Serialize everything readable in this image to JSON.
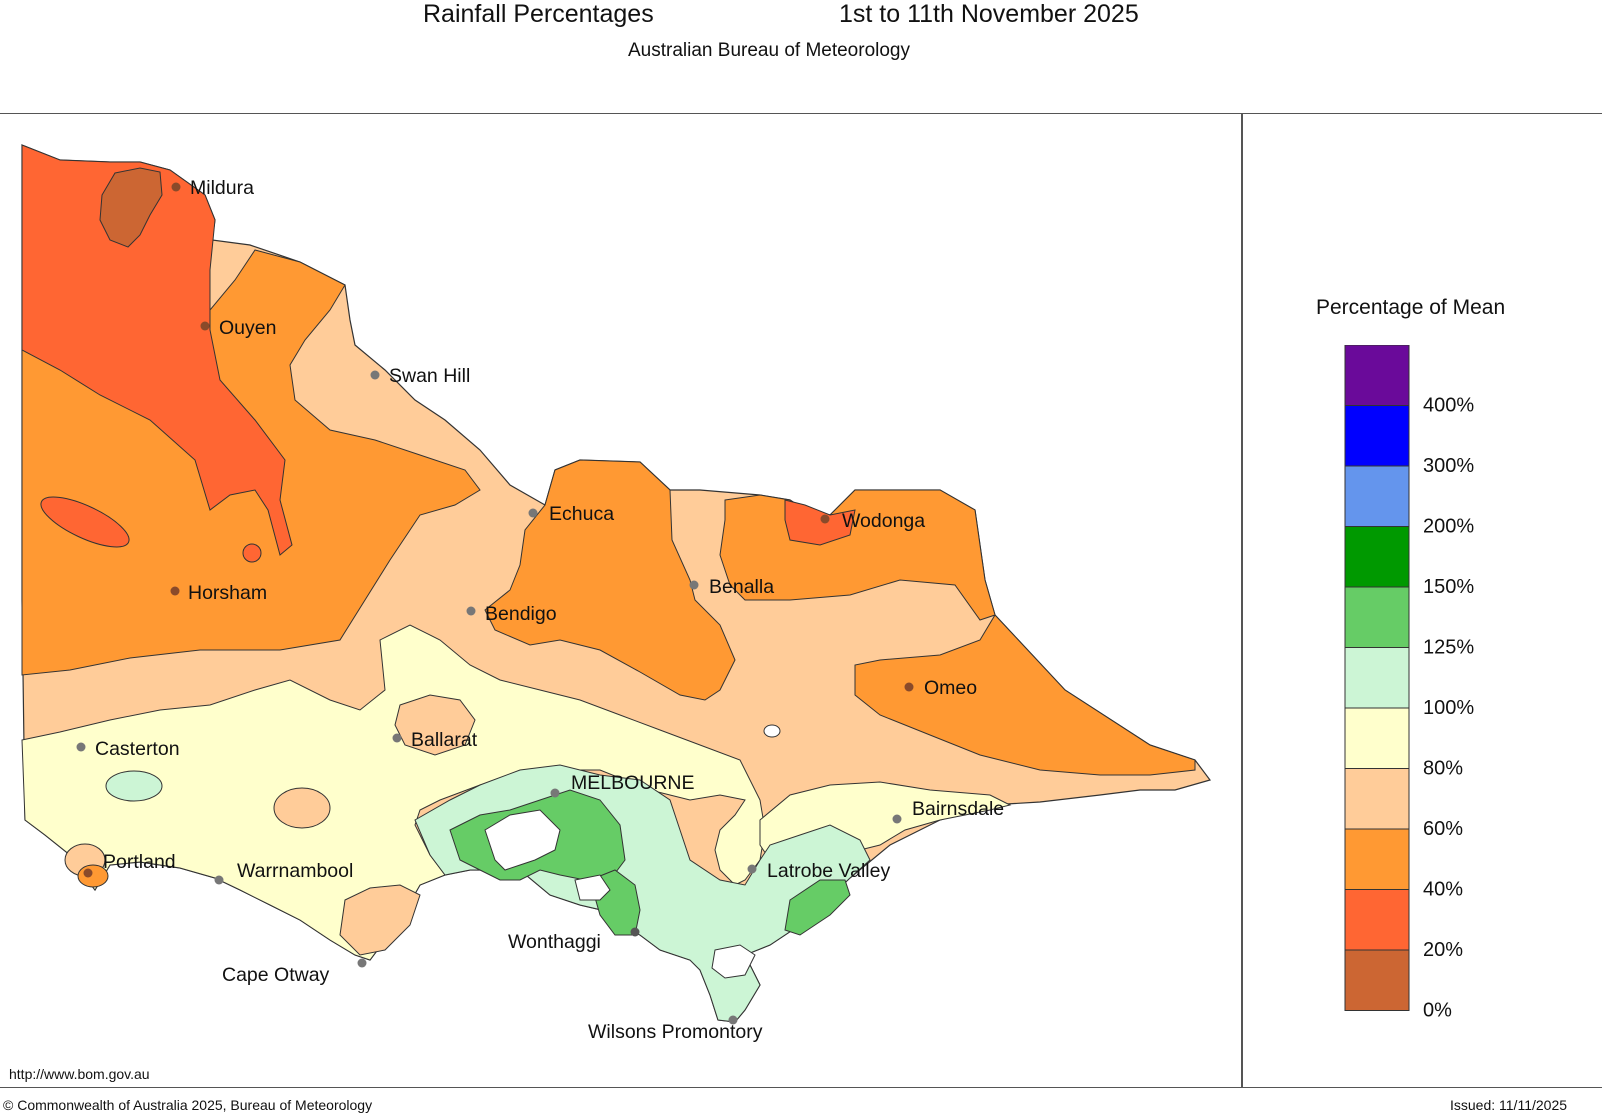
{
  "header": {
    "title": "Rainfall Percentages",
    "period": "1st to 11th November 2025",
    "subtitle": "Australian Bureau of Meteorology"
  },
  "legend": {
    "title": "Percentage of Mean",
    "bands": [
      {
        "color": "#6a0a9a"
      },
      {
        "color": "#0000ff"
      },
      {
        "color": "#6495ed"
      },
      {
        "color": "#009900"
      },
      {
        "color": "#66cc66"
      },
      {
        "color": "#ccf5d5"
      },
      {
        "color": "#ffffcc"
      },
      {
        "color": "#ffcc99"
      },
      {
        "color": "#ff9933"
      },
      {
        "color": "#ff6633"
      },
      {
        "color": "#cc6633"
      }
    ],
    "ticks": [
      "400%",
      "300%",
      "200%",
      "150%",
      "125%",
      "100%",
      "80%",
      "60%",
      "40%",
      "20%",
      "0%"
    ]
  },
  "places": [
    {
      "name": "Mildura"
    },
    {
      "name": "Ouyen"
    },
    {
      "name": "Swan Hill"
    },
    {
      "name": "Echuca"
    },
    {
      "name": "Wodonga"
    },
    {
      "name": "Benalla"
    },
    {
      "name": "Horsham"
    },
    {
      "name": "Bendigo"
    },
    {
      "name": "Omeo"
    },
    {
      "name": "Casterton"
    },
    {
      "name": "Ballarat"
    },
    {
      "name": "MELBOURNE"
    },
    {
      "name": "Bairnsdale"
    },
    {
      "name": "Portland"
    },
    {
      "name": "Warrnambool"
    },
    {
      "name": "Latrobe Valley"
    },
    {
      "name": "Wonthaggi"
    },
    {
      "name": "Cape Otway"
    },
    {
      "name": "Wilsons Promontory"
    }
  ],
  "footer": {
    "url": "http://www.bom.gov.au",
    "copyright": "© Commonwealth of Australia 2025, Bureau of Meteorology",
    "issued": "Issued: 11/11/2025"
  }
}
